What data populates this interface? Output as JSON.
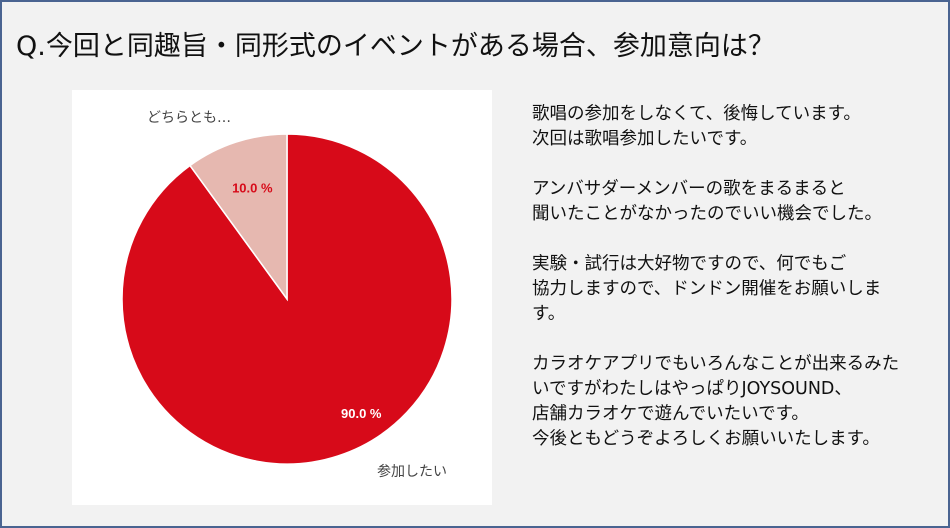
{
  "title": "Q.今回と同趣旨・同形式のイベントがある場合、参加意向は？",
  "chart_data": {
    "type": "pie",
    "categories": [
      "参加したい",
      "どちらとも…"
    ],
    "values": [
      90.0,
      10.0
    ],
    "data_labels": [
      "90.0 %",
      "10.0 %"
    ],
    "colors": [
      "#d70a19",
      "#e6b8b0"
    ],
    "label_colors": [
      "#ffffff",
      "#d70a19"
    ],
    "start": "top",
    "direction": "clockwise"
  },
  "comments": [
    "歌唱の参加をしなくて、後悔しています。\n次回は歌唱参加したいです。",
    "アンバサダーメンバーの歌をまるまると\n聞いたことがなかったのでいい機会でした。",
    "実験・試行は大好物ですので、何でもご\n協力しますので、ドンドン開催をお願いしま\nす。",
    "カラオケアプリでもいろんなことが出来るみた\nいですがわたしはやっぱりJOYSOUND、\n店舗カラオケで遊んでいたいです。\n今後ともどうぞよろしくお願いいたします。"
  ]
}
